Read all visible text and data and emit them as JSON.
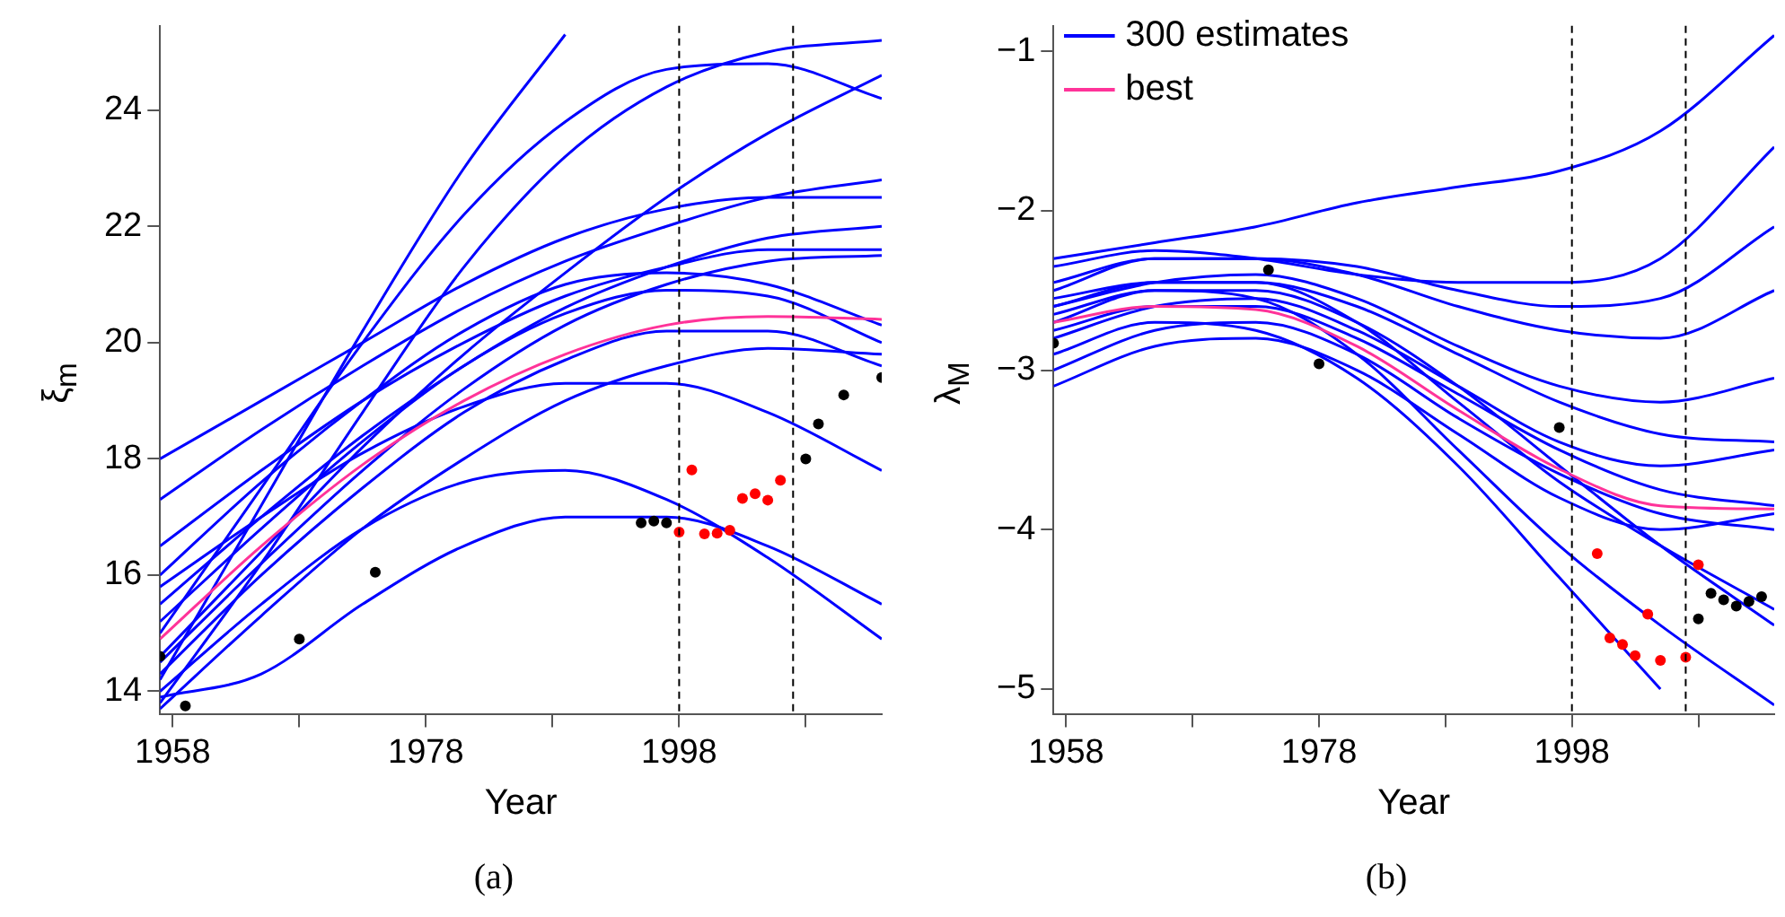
{
  "chart_data": [
    {
      "type": "line",
      "xlabel": "Year",
      "ylabel": "ξ$_{m}$",
      "x": [
        1957,
        1965,
        1973,
        1981,
        1989,
        1997,
        2005,
        2014
      ],
      "xlim": [
        1957,
        2014
      ],
      "xticks": [
        1958,
        {
          "value": 1968,
          "label": null
        },
        1978,
        {
          "value": 1988,
          "label": null
        },
        1998,
        {
          "value": 2008,
          "label": null
        }
      ],
      "ylim": [
        13.6,
        25.45
      ],
      "yticks": [
        14,
        16,
        18,
        20,
        22,
        24
      ],
      "grid": false,
      "legend": false,
      "line_style": "solid",
      "ref_lines": [
        {
          "axis": "x",
          "value": 1998,
          "color": "#000000",
          "line_style": "dashed"
        },
        {
          "axis": "x",
          "value": 2007,
          "color": "#000000",
          "line_style": "dashed"
        }
      ],
      "annotations": [
        "(a)"
      ],
      "series": [
        {
          "color": "#0000ff",
          "values": [
            13.7,
            15.3,
            16.8,
            18.0,
            19.0,
            19.6,
            19.9,
            19.8
          ]
        },
        {
          "color": "#0000ff",
          "values": [
            14.5,
            16.2,
            17.8,
            19.2,
            20.3,
            21.0,
            21.4,
            21.5
          ]
        },
        {
          "color": "#0000ff",
          "values": [
            15.5,
            17.0,
            18.4,
            19.6,
            20.6,
            21.3,
            21.8,
            22.0
          ]
        },
        {
          "color": "#0000ff",
          "values": [
            16.5,
            17.8,
            19.0,
            20.0,
            20.8,
            21.3,
            21.6,
            21.6
          ]
        },
        {
          "color": "#0000ff",
          "values": [
            18.0,
            19.0,
            20.0,
            21.0,
            21.8,
            22.3,
            22.5,
            22.5
          ]
        },
        {
          "color": "#0000ff",
          "values": [
            14.2,
            17.2,
            20.2,
            23.0,
            25.3,
            null,
            null,
            null
          ]
        },
        {
          "color": "#0000ff",
          "values": [
            15.0,
            17.5,
            20.0,
            22.2,
            23.8,
            24.7,
            24.8,
            24.2
          ]
        },
        {
          "color": "#0000ff",
          "values": [
            14.0,
            15.5,
            16.8,
            17.6,
            17.8,
            17.3,
            16.3,
            14.9
          ]
        },
        {
          "color": "#0000ff",
          "values": [
            13.9,
            14.3,
            15.5,
            16.5,
            17.0,
            17.0,
            16.5,
            15.5
          ]
        },
        {
          "color": "#0000ff",
          "values": [
            15.8,
            17.0,
            18.1,
            18.9,
            19.3,
            19.3,
            18.8,
            17.8
          ]
        },
        {
          "color": "#0000ff",
          "values": [
            14.6,
            16.4,
            18.2,
            19.8,
            21.2,
            22.5,
            23.6,
            24.6
          ]
        },
        {
          "color": "#0000ff",
          "values": [
            16.0,
            17.6,
            19.0,
            20.2,
            21.0,
            21.2,
            21.0,
            20.3
          ]
        },
        {
          "color": "#0000ff",
          "values": [
            17.3,
            18.5,
            19.6,
            20.6,
            21.4,
            22.0,
            22.5,
            22.8
          ]
        },
        {
          "color": "#0000ff",
          "values": [
            14.3,
            16.0,
            17.5,
            18.8,
            19.7,
            20.2,
            20.2,
            19.6
          ]
        },
        {
          "color": "#0000ff",
          "values": [
            15.2,
            16.8,
            18.3,
            19.6,
            20.5,
            20.9,
            20.8,
            20.0
          ]
        },
        {
          "color": "#0000ff",
          "values": [
            13.8,
            16.2,
            18.8,
            21.3,
            23.2,
            24.4,
            25.0,
            25.2
          ]
        },
        {
          "color": "#ff3399",
          "values": [
            14.9,
            16.5,
            17.9,
            19.0,
            19.8,
            20.3,
            20.45,
            20.4
          ]
        },
        {
          "type": "scatter",
          "color": "#000000",
          "marker": "circle",
          "x": [
            1957,
            1959,
            1968,
            1974,
            1995,
            1996,
            1997,
            2008,
            2009,
            2011,
            2014
          ],
          "values": [
            14.6,
            13.75,
            14.9,
            16.05,
            16.9,
            16.93,
            16.9,
            18.0,
            18.6,
            19.1,
            19.4
          ]
        },
        {
          "type": "scatter",
          "color": "#ff0000",
          "marker": "circle",
          "x": [
            1998,
            1999,
            2000,
            2001,
            2002,
            2003,
            2004,
            2005,
            2006
          ],
          "values": [
            16.74,
            17.81,
            16.71,
            16.72,
            16.77,
            17.32,
            17.4,
            17.29,
            17.63
          ]
        }
      ]
    },
    {
      "type": "line",
      "xlabel": "Year",
      "ylabel": "λ$_{M}$",
      "x": [
        1957,
        1965,
        1973,
        1981,
        1989,
        1997,
        2005,
        2014
      ],
      "xlim": [
        1957,
        2014
      ],
      "xticks": [
        1958,
        {
          "value": 1968,
          "label": null
        },
        1978,
        {
          "value": 1988,
          "label": null
        },
        1998,
        {
          "value": 2008,
          "label": null
        }
      ],
      "ylim": [
        -5.16,
        -0.84
      ],
      "yticks": [
        {
          "value": -5,
          "label": "−5"
        },
        {
          "value": -4,
          "label": "−4"
        },
        {
          "value": -3,
          "label": "−3"
        },
        {
          "value": -2,
          "label": "−2"
        },
        {
          "value": -1,
          "label": "−1"
        }
      ],
      "grid": false,
      "legend": "top left",
      "line_style": "solid",
      "ref_lines": [
        {
          "axis": "x",
          "value": 1998,
          "color": "#000000",
          "line_style": "dashed"
        },
        {
          "axis": "x",
          "value": 2007,
          "color": "#000000",
          "line_style": "dashed"
        }
      ],
      "annotations": [
        "(b)"
      ],
      "series": [
        {
          "name": "300 estimates",
          "color": "#0000ff",
          "values": [
            -2.3,
            -2.2,
            -2.1,
            -1.95,
            -1.85,
            -1.75,
            -1.5,
            -0.9
          ]
        },
        {
          "color": "#0000ff",
          "values": [
            -2.35,
            -2.25,
            -2.3,
            -2.4,
            -2.45,
            -2.45,
            -2.3,
            -1.6
          ]
        },
        {
          "color": "#0000ff",
          "values": [
            -2.5,
            -2.3,
            -2.3,
            -2.4,
            -2.6,
            -2.75,
            -2.8,
            -2.5
          ]
        },
        {
          "color": "#0000ff",
          "values": [
            -2.6,
            -2.45,
            -2.4,
            -2.55,
            -2.85,
            -3.1,
            -3.2,
            -3.05
          ]
        },
        {
          "color": "#0000ff",
          "values": [
            -2.8,
            -2.6,
            -2.55,
            -2.75,
            -3.1,
            -3.45,
            -3.6,
            -3.5
          ]
        },
        {
          "color": "#0000ff",
          "values": [
            -3.1,
            -2.85,
            -2.8,
            -3.0,
            -3.4,
            -3.8,
            -4.0,
            -3.9
          ]
        },
        {
          "color": "#0000ff",
          "values": [
            -2.9,
            -2.7,
            -2.75,
            -3.05,
            -3.6,
            -4.3,
            -5.0,
            null
          ]
        },
        {
          "color": "#0000ff",
          "values": [
            -2.7,
            -2.5,
            -2.55,
            -2.9,
            -3.5,
            -4.1,
            -4.6,
            -5.1
          ]
        },
        {
          "color": "#0000ff",
          "values": [
            -2.6,
            -2.45,
            -2.45,
            -2.7,
            -3.2,
            -3.7,
            -4.1,
            -4.5
          ]
        },
        {
          "color": "#0000ff",
          "values": [
            -2.75,
            -2.6,
            -2.6,
            -2.8,
            -3.15,
            -3.5,
            -3.75,
            -3.85
          ]
        },
        {
          "color": "#0000ff",
          "values": [
            -2.55,
            -2.45,
            -2.45,
            -2.6,
            -2.9,
            -3.2,
            -3.4,
            -3.45
          ]
        },
        {
          "color": "#0000ff",
          "values": [
            -3.0,
            -2.75,
            -2.7,
            -2.9,
            -3.3,
            -3.65,
            -3.9,
            -4.0
          ]
        },
        {
          "color": "#0000ff",
          "values": [
            -2.45,
            -2.3,
            -2.3,
            -2.35,
            -2.5,
            -2.6,
            -2.55,
            -2.1
          ]
        },
        {
          "color": "#0000ff",
          "values": [
            -2.65,
            -2.5,
            -2.5,
            -2.7,
            -3.1,
            -3.6,
            -4.1,
            -4.6
          ]
        },
        {
          "name": "best",
          "color": "#ff3399",
          "values": [
            -2.7,
            -2.6,
            -2.62,
            -2.85,
            -3.25,
            -3.62,
            -3.85,
            -3.87
          ]
        },
        {
          "type": "scatter",
          "color": "#000000",
          "marker": "circle",
          "x": [
            1957,
            1974,
            1978,
            1997,
            2008,
            2009,
            2010,
            2011,
            2012,
            2013
          ],
          "values": [
            -2.83,
            -2.37,
            -2.96,
            -3.36,
            -4.56,
            -4.4,
            -4.44,
            -4.48,
            -4.45,
            -4.42
          ]
        },
        {
          "type": "scatter",
          "color": "#ff0000",
          "marker": "circle",
          "x": [
            2000,
            2001,
            2002,
            2003,
            2004,
            2005,
            2007,
            2008
          ],
          "values": [
            -4.15,
            -4.68,
            -4.72,
            -4.79,
            -4.53,
            -4.82,
            -4.8,
            -4.22
          ]
        }
      ]
    }
  ]
}
